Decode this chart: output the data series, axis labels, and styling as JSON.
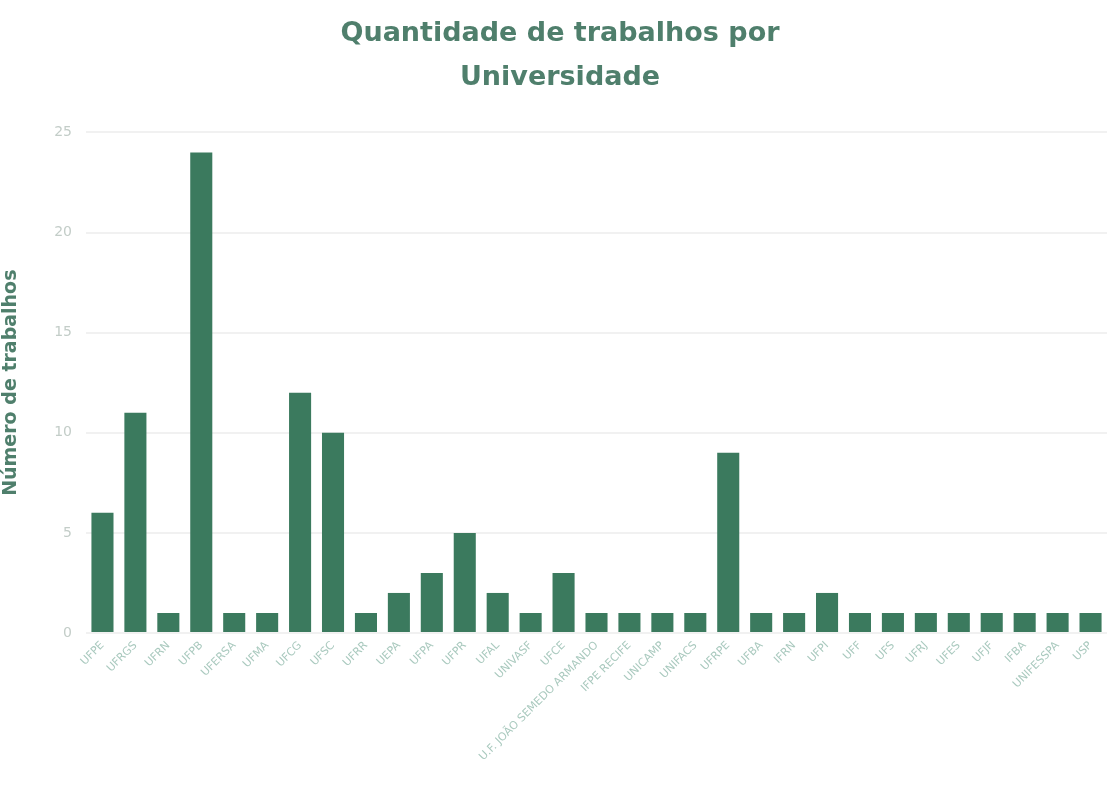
{
  "chart_data": {
    "type": "bar",
    "title": "Quantidade de trabalhos por Universidade",
    "ylabel": "Número de trabalhos",
    "categories": [
      "UFPE",
      "UFRGS",
      "UFRN",
      "UFPB",
      "UFERSA",
      "UFMA",
      "UFCG",
      "UFSC",
      "UFRR",
      "UEPA",
      "UFPA",
      "UFPR",
      "UFAL",
      "UNIVASF",
      "UFCE",
      "U.F. JOÃO SEMEDO ARMANDO",
      "IFPE RECIFE",
      "UNICAMP",
      "UNIFACS",
      "UFRPE",
      "UFBA",
      "IFRN",
      "UFPI",
      "UFF",
      "UFS",
      "UFRJ",
      "UFES",
      "UFJF",
      "IFBA",
      "UNIFESSPA",
      "USP"
    ],
    "values": [
      6,
      11,
      1,
      24,
      1,
      1,
      12,
      10,
      1,
      2,
      3,
      5,
      2,
      1,
      3,
      1,
      1,
      1,
      1,
      9,
      1,
      1,
      2,
      1,
      1,
      1,
      1,
      1,
      1,
      1,
      1
    ],
    "color": "#3b7a5e",
    "ylim": [
      0,
      25
    ],
    "yticks": [
      0,
      5,
      10,
      15,
      20,
      25
    ],
    "grid": "y",
    "legend": false
  }
}
